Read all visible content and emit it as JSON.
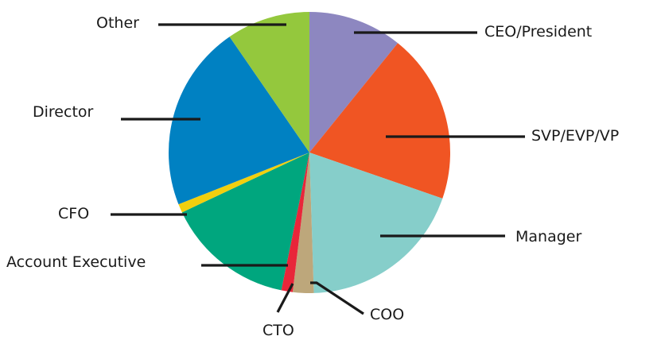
{
  "chart_data": {
    "type": "pie",
    "title": "",
    "unit": "%",
    "start_angle_deg": 0,
    "direction": "clockwise",
    "slices": [
      {
        "label": "CEO/President",
        "value": 10.8,
        "color": "#8d87c0"
      },
      {
        "label": "SVP/EVP/VP",
        "value": 19.5,
        "color": "#f05523"
      },
      {
        "label": "Manager",
        "value": 19.2,
        "color": "#86ceca"
      },
      {
        "label": "COO",
        "value": 2.4,
        "color": "#bda77b"
      },
      {
        "label": "CTO",
        "value": 1.3,
        "color": "#e8263a"
      },
      {
        "label": "Account Executive",
        "value": 14.8,
        "color": "#00a67e"
      },
      {
        "label": "CFO",
        "value": 1.0,
        "color": "#f2cf0e"
      },
      {
        "label": "Director",
        "value": 21.4,
        "color": "#0081c2"
      },
      {
        "label": "Other",
        "value": 9.6,
        "color": "#94c83d"
      }
    ]
  }
}
